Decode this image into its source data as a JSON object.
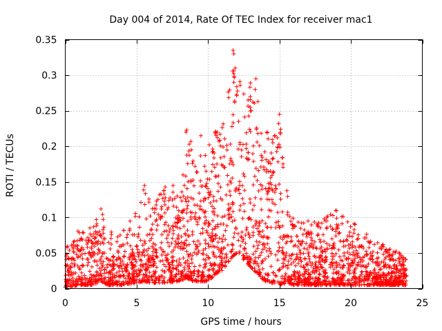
{
  "chart_data": {
    "type": "scatter",
    "title": "Day 004 of 2014, Rate Of TEC Index for receiver mac1",
    "xlabel": "GPS time / hours",
    "ylabel": "ROTI / TECUs",
    "xlim": [
      0,
      25
    ],
    "ylim": [
      0,
      0.35
    ],
    "x_ticks": [
      0,
      5,
      10,
      15,
      20,
      25
    ],
    "y_ticks": [
      0,
      0.05,
      0.1,
      0.15,
      0.2,
      0.25,
      0.3,
      0.35
    ],
    "x_tick_labels": [
      "0",
      "5",
      "10",
      "15",
      "20",
      "25"
    ],
    "y_tick_labels": [
      "0",
      "0.05",
      "0.1",
      "0.15",
      "0.2",
      "0.25",
      "0.3",
      "0.35"
    ],
    "grid": true,
    "marker": "+",
    "color": "#ff0000",
    "x_data_range": [
      0,
      23.9
    ],
    "series": [
      {
        "name": "ROTI",
        "envelope_x": [
          0,
          1,
          2,
          2.5,
          3,
          4,
          5,
          5.5,
          6,
          7,
          8,
          8.5,
          9,
          10,
          10.5,
          11,
          11.5,
          12,
          12.5,
          13,
          13.5,
          14,
          14.5,
          15,
          15.5,
          16,
          17,
          18,
          19,
          20,
          21,
          22,
          23,
          23.9
        ],
        "envelope_upper": [
          0.055,
          0.085,
          0.09,
          0.115,
          0.08,
          0.08,
          0.11,
          0.145,
          0.12,
          0.145,
          0.13,
          0.225,
          0.21,
          0.2,
          0.235,
          0.24,
          0.3,
          0.335,
          0.28,
          0.295,
          0.27,
          0.23,
          0.21,
          0.245,
          0.14,
          0.1,
          0.09,
          0.1,
          0.11,
          0.095,
          0.08,
          0.065,
          0.055,
          0.045
        ],
        "envelope_lower": [
          0.002,
          0.005,
          0.005,
          0.01,
          0.005,
          0.005,
          0.008,
          0.01,
          0.008,
          0.008,
          0.01,
          0.015,
          0.01,
          0.01,
          0.02,
          0.025,
          0.04,
          0.05,
          0.04,
          0.03,
          0.02,
          0.01,
          0.008,
          0.005,
          0.008,
          0.005,
          0.005,
          0.005,
          0.005,
          0.005,
          0.005,
          0.005,
          0.005,
          0.005
        ],
        "notable_points": [
          {
            "x": 11.75,
            "y": 0.335
          },
          {
            "x": 11.8,
            "y": 0.33
          },
          {
            "x": 11.9,
            "y": 0.31
          },
          {
            "x": 11.8,
            "y": 0.29
          },
          {
            "x": 13.35,
            "y": 0.295
          },
          {
            "x": 13.3,
            "y": 0.28
          },
          {
            "x": 15.0,
            "y": 0.245
          },
          {
            "x": 8.5,
            "y": 0.223
          },
          {
            "x": 8.45,
            "y": 0.22
          },
          {
            "x": 9.5,
            "y": 0.215
          },
          {
            "x": 14.85,
            "y": 0.212
          },
          {
            "x": 12.8,
            "y": 0.265
          },
          {
            "x": 12.95,
            "y": 0.255
          },
          {
            "x": 2.5,
            "y": 0.112
          },
          {
            "x": 5.55,
            "y": 0.145
          },
          {
            "x": 7.55,
            "y": 0.145
          },
          {
            "x": 18.95,
            "y": 0.11
          },
          {
            "x": 17.0,
            "y": 0.095
          }
        ]
      }
    ]
  }
}
